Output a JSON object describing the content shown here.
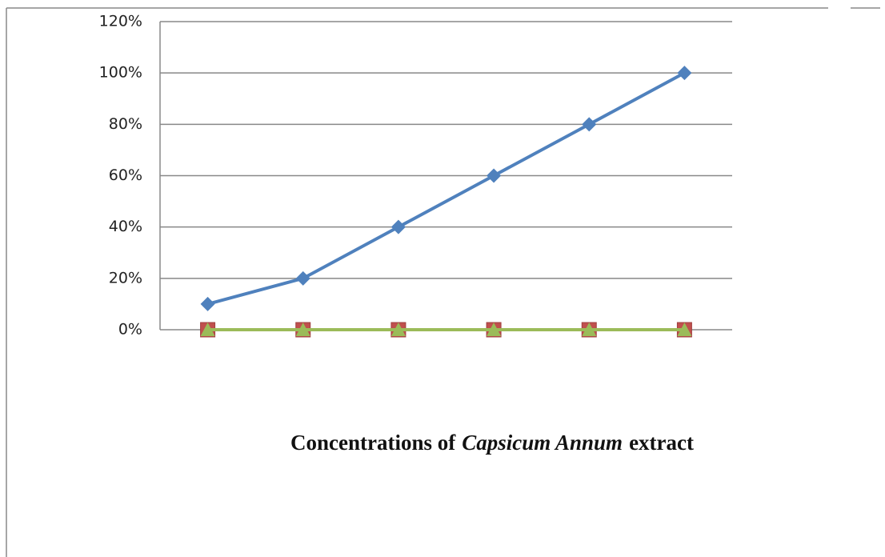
{
  "chart_data": {
    "type": "line",
    "xlabel": [
      "Concentrations of",
      "Capsicum Annum",
      "extract"
    ],
    "categories": [
      null,
      null,
      null,
      null,
      null,
      null
    ],
    "series": [
      {
        "color": "#4f81bd",
        "marker": "diamond",
        "values": [
          10,
          20,
          40,
          60,
          80,
          100
        ]
      },
      {
        "color": "#c0504d",
        "marker": "square",
        "values": [
          0,
          0,
          0,
          0,
          0,
          0
        ]
      },
      {
        "color": "#9bbb59",
        "marker": "triangle",
        "values": [
          0,
          0,
          0,
          0,
          0,
          0
        ]
      }
    ],
    "ylim": [
      0,
      120
    ],
    "yticks": [
      {
        "value": 0,
        "label": "0%"
      },
      {
        "value": 20,
        "label": "20%"
      },
      {
        "value": 40,
        "label": "40%"
      },
      {
        "value": 60,
        "label": "60%"
      },
      {
        "value": 80,
        "label": "80%"
      },
      {
        "value": 100,
        "label": "100%"
      },
      {
        "value": 120,
        "label": "120%"
      }
    ],
    "grid": true
  }
}
